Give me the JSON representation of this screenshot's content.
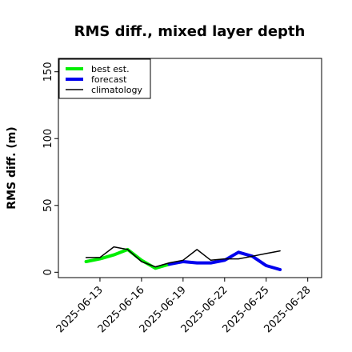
{
  "chart_data": {
    "type": "line",
    "title": "RMS diff., mixed layer depth",
    "xlabel": "",
    "ylabel": "RMS diff. (m)",
    "x_axis_type": "date",
    "xlim": [
      "2025-06-10",
      "2025-06-29"
    ],
    "ylim": [
      -4,
      160
    ],
    "x_ticks": [
      "2025-06-13",
      "2025-06-16",
      "2025-06-19",
      "2025-06-22",
      "2025-06-25",
      "2025-06-28"
    ],
    "highlighted_tick": "2025-06-19",
    "highlight_color": "#228b22",
    "y_ticks": [
      0,
      50,
      100,
      150
    ],
    "grid": false,
    "legend_position": "top-left",
    "series": [
      {
        "name": "best est.",
        "color": "#00ee00",
        "linewidth": "thick",
        "x": [
          "2025-06-12",
          "2025-06-13",
          "2025-06-14",
          "2025-06-15",
          "2025-06-16",
          "2025-06-17",
          "2025-06-18"
        ],
        "y": [
          8,
          10,
          13,
          17,
          9,
          3,
          6
        ]
      },
      {
        "name": "forecast",
        "color": "#0000ee",
        "linewidth": "thick",
        "x": [
          "2025-06-18",
          "2025-06-19",
          "2025-06-20",
          "2025-06-21",
          "2025-06-22",
          "2025-06-23",
          "2025-06-24",
          "2025-06-25",
          "2025-06-26"
        ],
        "y": [
          6,
          8,
          7,
          7,
          9,
          15,
          12,
          5,
          2
        ]
      },
      {
        "name": "climatology",
        "color": "#000000",
        "linewidth": "thin",
        "x": [
          "2025-06-12",
          "2025-06-13",
          "2025-06-14",
          "2025-06-15",
          "2025-06-16",
          "2025-06-17",
          "2025-06-18",
          "2025-06-19",
          "2025-06-20",
          "2025-06-21",
          "2025-06-22",
          "2025-06-23",
          "2025-06-24",
          "2025-06-25",
          "2025-06-26"
        ],
        "y": [
          11,
          11,
          19,
          17,
          8,
          4,
          7,
          9,
          17,
          9,
          10,
          10,
          12,
          14,
          16
        ]
      }
    ]
  }
}
